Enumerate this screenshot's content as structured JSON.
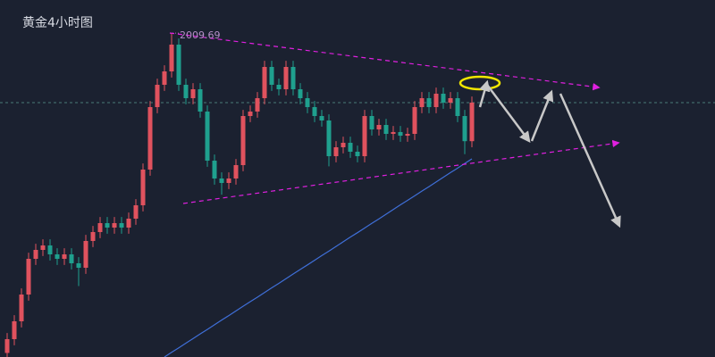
{
  "chart_data": {
    "type": "candlestick",
    "title": "黄金4小时图",
    "ylim": [
      1850,
      2026
    ],
    "up_color": "#e0525e",
    "down_color": "#1fa08e",
    "open": [
      1852,
      1858.8,
      1867.6,
      1880.8,
      1898.4,
      1902.8,
      1905,
      1900.6,
      1898.4,
      1900.6,
      1896.2,
      1894,
      1907.2,
      1911.6,
      1916,
      1913.8,
      1916,
      1913.8,
      1918.2,
      1924.8,
      1942.4,
      1973.2,
      1984.2,
      1990.8,
      2004,
      1984.2,
      1977.6,
      1982,
      1971,
      1946.8,
      1938,
      1935.8,
      1938,
      1944.6,
      1968.8,
      1971,
      1977.6,
      1993,
      1984.2,
      1982,
      1993,
      1982,
      1977.6,
      1973.2,
      1968.8,
      1966.6,
      1949,
      1953.4,
      1955.6,
      1951.2,
      1949,
      1968.8,
      1962.2,
      1964.4,
      1960,
      1960.9,
      1959.1,
      1960,
      1973.2,
      1977.6,
      1973.2,
      1979.8,
      1975.4,
      1977.6,
      1968.8,
      1956.4
    ],
    "high": [
      1861.8,
      1870.6,
      1883.8,
      1901.4,
      1905.8,
      1908,
      1908,
      1903.6,
      1903.6,
      1903.6,
      1899.2,
      1910.2,
      1914.6,
      1919,
      1919,
      1919,
      1919,
      1921.2,
      1927.8,
      1945.4,
      1976.2,
      1987.2,
      1993.8,
      2009.69,
      2007,
      1987.2,
      1985,
      1985,
      1974,
      1949.8,
      1941,
      1941,
      1947.6,
      1971.8,
      1974,
      1980.6,
      1996,
      1996,
      1987.2,
      1996,
      1996,
      1985,
      1980.6,
      1976.2,
      1971.8,
      1969.6,
      1956.4,
      1958.6,
      1958.6,
      1954.2,
      1971.8,
      1971.8,
      1967.4,
      1967.4,
      1963.9,
      1963.9,
      1963,
      1976.2,
      1980.6,
      1980.6,
      1982.8,
      1982.8,
      1980.6,
      1980.6,
      1971.8,
      1978.4
    ],
    "low": [
      1849,
      1855.8,
      1864.6,
      1877.8,
      1895.4,
      1899.8,
      1897.6,
      1895.4,
      1895.4,
      1893.2,
      1885,
      1891,
      1904.2,
      1908.6,
      1910.8,
      1910.8,
      1910.8,
      1910.8,
      1915.2,
      1921.8,
      1939.4,
      1970.2,
      1981.2,
      1987.8,
      1981.2,
      1974.6,
      1974.6,
      1968,
      1943.8,
      1935,
      1930,
      1932.8,
      1935,
      1941.6,
      1965.8,
      1968,
      1974.6,
      1981.2,
      1979,
      1979,
      1979,
      1974.6,
      1970.2,
      1965.8,
      1963.6,
      1944,
      1946,
      1950.4,
      1948.2,
      1946,
      1946,
      1959.2,
      1959.2,
      1957,
      1957,
      1956.1,
      1956.1,
      1957,
      1970.2,
      1970.2,
      1970.2,
      1972.4,
      1972.4,
      1965.8,
      1950,
      1953.4
    ],
    "close": [
      1858.8,
      1867.6,
      1880.8,
      1898.4,
      1902.8,
      1905,
      1900.6,
      1898.4,
      1900.6,
      1896.2,
      1894,
      1907.2,
      1911.6,
      1916,
      1913.8,
      1916,
      1913.8,
      1918.2,
      1924.8,
      1942.4,
      1973.2,
      1984.2,
      1990.8,
      2004,
      1984.2,
      1977.6,
      1982,
      1971,
      1946.8,
      1938,
      1935.8,
      1938,
      1944.6,
      1968.8,
      1971,
      1977.6,
      1993,
      1984.2,
      1982,
      1993,
      1982,
      1977.6,
      1973.2,
      1968.8,
      1966.6,
      1949,
      1953.4,
      1955.6,
      1951.2,
      1949,
      1968.8,
      1962.2,
      1964.4,
      1960,
      1960.9,
      1959.1,
      1960,
      1973.2,
      1977.6,
      1973.2,
      1979.8,
      1975.4,
      1977.6,
      1968.8,
      1956.4,
      1975.4
    ],
    "ma_color": "#3f6fd8",
    "ma_values": [
      null,
      null,
      null,
      null,
      null,
      null,
      null,
      null,
      null,
      null,
      null,
      null,
      null,
      null,
      null,
      null,
      null,
      null,
      null,
      null,
      null,
      null,
      1850,
      1852.3,
      1854.5,
      1856.8,
      1859.1,
      1861.4,
      1863.6,
      1865.9,
      1868.2,
      1870.4,
      1872.7,
      1875,
      1877.3,
      1879.5,
      1881.8,
      1884.1,
      1886.3,
      1888.6,
      1890.9,
      1893.2,
      1895.4,
      1897.7,
      1900,
      1902.2,
      1904.5,
      1906.8,
      1909.1,
      1911.3,
      1913.6,
      1915.9,
      1918.1,
      1920.4,
      1922.7,
      1925,
      1927.2,
      1929.5,
      1931.8,
      1934,
      1936.3,
      1938.6,
      1940.9,
      1943.1,
      1945.4,
      1947.7
    ],
    "peak_index": 23
  }
}
